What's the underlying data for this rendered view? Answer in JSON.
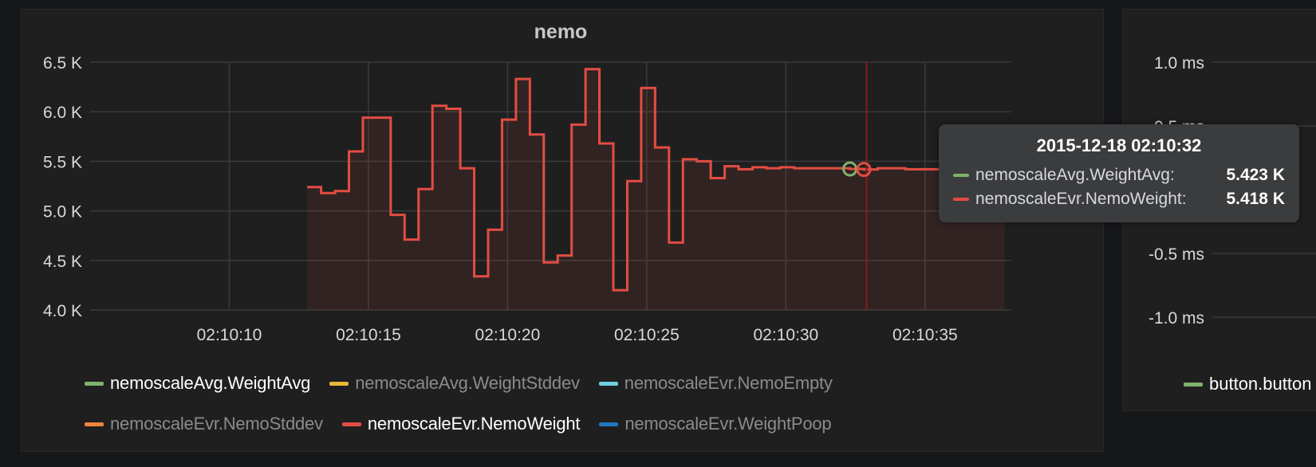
{
  "panels": {
    "main_title": "nemo"
  },
  "colors": {
    "weight_avg": "#7eb26d",
    "weight_stddev": "#eab839",
    "nemo_empty": "#6ed0e0",
    "nemo_stddev": "#ef843c",
    "nemo_weight": "#e24d42",
    "weight_poop": "#1f78c1",
    "crosshair": "#8a1a1a",
    "grid": "#3a3a3a",
    "tick_text": "#d8d9da"
  },
  "legend": {
    "items": [
      {
        "label": "nemoscaleAvg.WeightAvg",
        "color": "#7eb26d",
        "active": true
      },
      {
        "label": "nemoscaleAvg.WeightStddev",
        "color": "#eab839",
        "active": false
      },
      {
        "label": "nemoscaleEvr.NemoEmpty",
        "color": "#6ed0e0",
        "active": false
      },
      {
        "label": "nemoscaleEvr.NemoStddev",
        "color": "#ef843c",
        "active": false
      },
      {
        "label": "nemoscaleEvr.NemoWeight",
        "color": "#e24d42",
        "active": true
      },
      {
        "label": "nemoscaleEvr.WeightPoop",
        "color": "#1f78c1",
        "active": false
      }
    ]
  },
  "tooltip": {
    "time": "2015-12-18 02:10:32",
    "rows": [
      {
        "name": "nemoscaleAvg.WeightAvg:",
        "value": "5.423 K",
        "color": "#7eb26d"
      },
      {
        "name": "nemoscaleEvr.NemoWeight:",
        "value": "5.418 K",
        "color": "#e24d42"
      }
    ]
  },
  "right_panel": {
    "y_ticks": [
      "1.0 ms",
      "0.5 ms",
      "-0.5 ms",
      "-1.0 ms"
    ],
    "legend_label": "button.button",
    "legend_color": "#7eb26d"
  },
  "chart_data": {
    "type": "line",
    "title": "nemo",
    "xlabel": "",
    "ylabel": "",
    "x_ticks": [
      "02:10:10",
      "02:10:15",
      "02:10:20",
      "02:10:25",
      "02:10:30",
      "02:10:35"
    ],
    "x_tick_seconds": [
      10,
      15,
      20,
      25,
      30,
      35
    ],
    "xlim_seconds": [
      5.0,
      38.1
    ],
    "y_ticks": [
      "4.0 K",
      "4.5 K",
      "5.0 K",
      "5.5 K",
      "6.0 K",
      "6.5 K"
    ],
    "y_tick_values": [
      4000,
      4500,
      5000,
      5500,
      6000,
      6500
    ],
    "ylim": [
      4000,
      6500
    ],
    "grid": true,
    "legend_position": "bottom",
    "crosshair_seconds": 32.9,
    "series": [
      {
        "name": "nemoscaleEvr.NemoWeight",
        "step": true,
        "fill": true,
        "seconds": [
          12.8,
          13.3,
          13.8,
          14.3,
          14.8,
          15.8,
          16.3,
          16.8,
          17.3,
          17.8,
          18.3,
          18.8,
          19.3,
          19.8,
          20.3,
          20.8,
          21.3,
          21.8,
          22.3,
          22.8,
          23.3,
          23.8,
          24.3,
          24.8,
          25.3,
          25.8,
          26.3,
          26.8,
          27.3,
          27.8,
          28.3,
          28.8,
          29.3,
          29.8,
          30.3,
          30.8,
          31.3,
          31.8,
          32.3,
          32.8,
          33.3,
          33.8,
          34.3,
          34.8,
          35.3,
          35.8,
          36.3,
          36.8,
          37.3,
          37.8
        ],
        "values": [
          5240,
          5180,
          5200,
          5600,
          5940,
          4960,
          4710,
          5220,
          6060,
          6030,
          5430,
          4340,
          4810,
          5920,
          6330,
          5770,
          4480,
          4550,
          5870,
          6430,
          5680,
          4200,
          5300,
          6240,
          5640,
          4680,
          5520,
          5500,
          5330,
          5450,
          5420,
          5440,
          5430,
          5440,
          5430,
          5430,
          5430,
          5430,
          5423,
          5418,
          5430,
          5430,
          5420,
          5420,
          5420,
          5420,
          5420,
          5420,
          5420,
          5420
        ]
      },
      {
        "name": "nemoscaleAvg.WeightAvg",
        "step": false,
        "fill": false,
        "seconds": [
          32.3
        ],
        "values": [
          5423
        ]
      }
    ]
  }
}
